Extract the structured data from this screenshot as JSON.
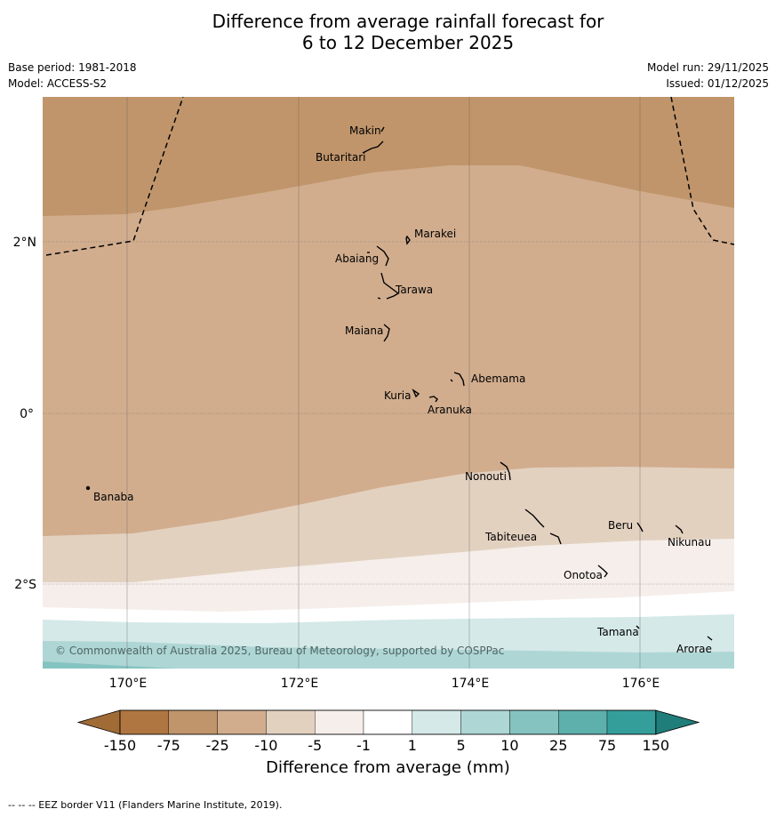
{
  "title_line1": "Difference from average rainfall forecast for",
  "title_line2": "6 to 12 December 2025",
  "meta_left": {
    "base_period": "Base period: 1981-2018",
    "model": "Model: ACCESS-S2"
  },
  "meta_right": {
    "model_run": "Model run: 29/11/2025",
    "issued": "Issued: 01/12/2025"
  },
  "lat_labels": [
    "2°N",
    "0°",
    "2°S"
  ],
  "lon_labels": [
    "170°E",
    "172°E",
    "174°E",
    "176°E"
  ],
  "islands": [
    "Makin",
    "Butaritari",
    "Marakei",
    "Abaiang",
    "Tarawa",
    "Maiana",
    "Abemama",
    "Kuria",
    "Aranuka",
    "Nonouti",
    "Banaba",
    "Beru",
    "Nikunau",
    "Tabiteuea",
    "Onotoa",
    "Tamana",
    "Arorae"
  ],
  "copyright": "© Commonwealth of Australia 2025, Bureau of Meteorology, supported by COSPPac",
  "colorbar": {
    "ticks": [
      "-150",
      "-75",
      "-25",
      "-10",
      "-5",
      "-1",
      "1",
      "5",
      "10",
      "25",
      "75",
      "150"
    ],
    "colors": [
      "#a16b36",
      "#b07642",
      "#c0956b",
      "#d1ad8e",
      "#e3d1c0",
      "#f5eeea",
      "#ffffff",
      "#d4e9e8",
      "#aed6d5",
      "#85c3c1",
      "#5eb0ad",
      "#349e9b",
      "#1f7d7a"
    ],
    "label": "Difference from average (mm)"
  },
  "footer": "-- -- -- EEZ border V11 (Flanders Marine Institute, 2019)."
}
